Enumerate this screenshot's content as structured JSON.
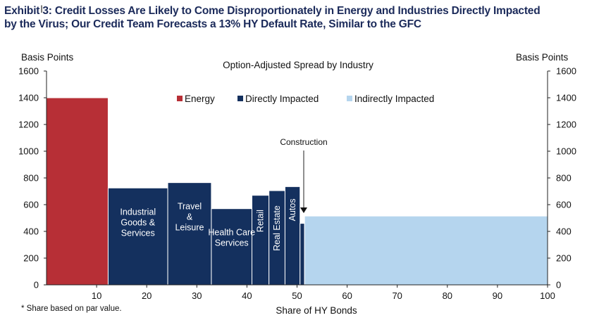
{
  "title_line1": "Exhibit 3: Credit Losses Are Likely to Come Disproportionately in Energy and Industries Directly Impacted",
  "title_line2": "by the Virus; Our Credit Team Forecasts a 13% HY Default Rate, Similar to the GFC",
  "colors": {
    "energy": "#b72f36",
    "directly": "#14305e",
    "indirectly": "#b5d5ee",
    "title": "#1b2a5a"
  },
  "chart_data": {
    "type": "bar",
    "title": "Option-Adjusted Spread by Industry",
    "xlabel": "Share of HY Bonds",
    "ylabel_left": "Basis Points",
    "ylabel_right": "Basis Points",
    "xlim": [
      0,
      100
    ],
    "ylim": [
      0,
      1600
    ],
    "xticks": [
      "10",
      "20",
      "30",
      "40",
      "50",
      "60",
      "70",
      "80",
      "90",
      "100"
    ],
    "yticks": [
      "0",
      "200",
      "400",
      "600",
      "800",
      "1000",
      "1200",
      "1400",
      "1600"
    ],
    "legend": [
      {
        "label": "Energy",
        "color": "#b72f36"
      },
      {
        "label": "Directly Impacted",
        "color": "#14305e"
      },
      {
        "label": "Indirectly Impacted",
        "color": "#b5d5ee"
      }
    ],
    "legend_position": "top-center",
    "footnote": "* Share based on par value.",
    "annotation": "Construction",
    "bars": [
      {
        "label": "",
        "group": "Energy",
        "x0": 0,
        "x1": 12.3,
        "value": 1400
      },
      {
        "label": "Industrial\nGoods &\nServices",
        "group": "Directly Impacted",
        "x0": 12.3,
        "x1": 24.2,
        "value": 725
      },
      {
        "label": "Travel\n&\nLeisure",
        "group": "Directly Impacted",
        "x0": 24.2,
        "x1": 32.9,
        "value": 765
      },
      {
        "label": "Health Care\nServices",
        "group": "Directly Impacted",
        "x0": 32.9,
        "x1": 41.0,
        "value": 570
      },
      {
        "label": "Retail",
        "group": "Directly Impacted",
        "x0": 41.0,
        "x1": 44.4,
        "value": 670,
        "vertical": true
      },
      {
        "label": "Real Estate",
        "group": "Directly Impacted",
        "x0": 44.4,
        "x1": 47.6,
        "value": 705,
        "vertical": true
      },
      {
        "label": "Autos",
        "group": "Directly Impacted",
        "x0": 47.6,
        "x1": 50.6,
        "value": 735,
        "vertical": true
      },
      {
        "label": "",
        "group": "Directly Impacted",
        "x0": 50.6,
        "x1": 51.5,
        "value": 460
      },
      {
        "label": "",
        "group": "Indirectly Impacted",
        "x0": 51.5,
        "x1": 100,
        "value": 515
      }
    ]
  }
}
